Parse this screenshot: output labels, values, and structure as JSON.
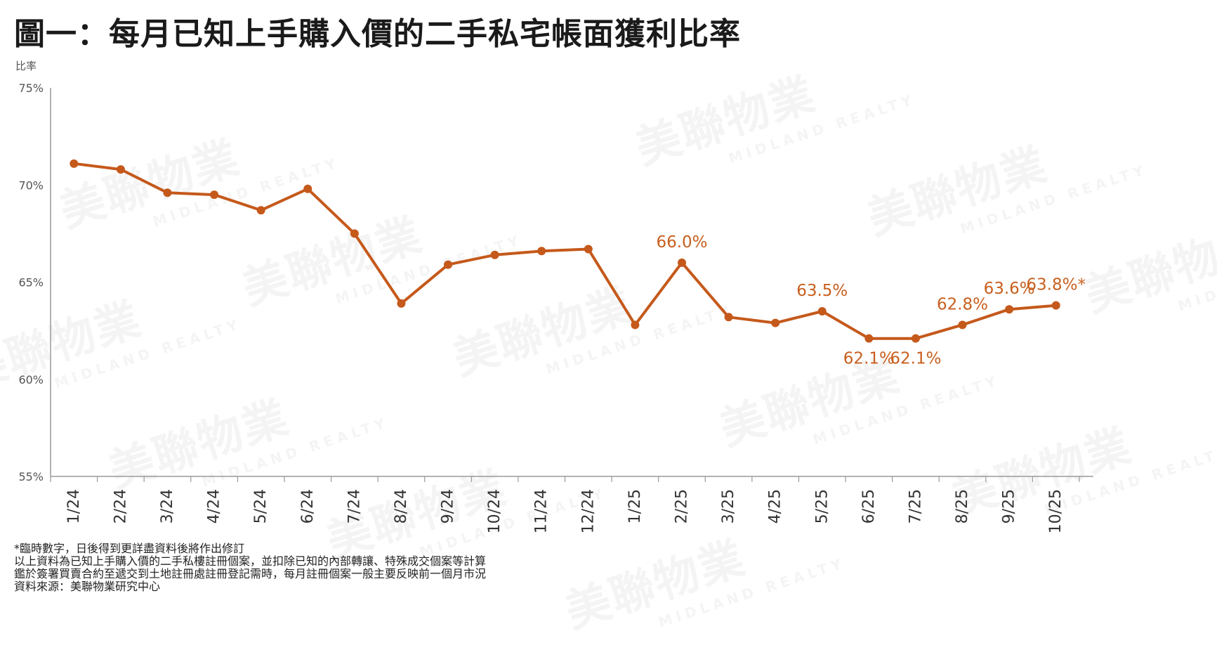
{
  "title": "圖一：每月已知上手購入價的二手私宅帳面獲利比率",
  "watermark": {
    "cn": "美聯物業",
    "en": "MIDLAND REALTY"
  },
  "colors": {
    "series": "#c5591b",
    "axis": "#9a9a9a",
    "title": "#1a1a1a"
  },
  "chart_data": {
    "type": "line",
    "ylabel": "比率",
    "ylim": [
      55,
      75
    ],
    "yticks": [
      55,
      60,
      65,
      70,
      75
    ],
    "ytick_labels": [
      "55%",
      "60%",
      "65%",
      "70%",
      "75%"
    ],
    "grid": false,
    "categories": [
      "1/24",
      "2/24",
      "3/24",
      "4/24",
      "5/24",
      "6/24",
      "7/24",
      "8/24",
      "9/24",
      "10/24",
      "11/24",
      "12/24",
      "1/25",
      "2/25",
      "3/25",
      "4/25",
      "5/25",
      "6/25",
      "7/25",
      "8/25",
      "9/25",
      "10/25"
    ],
    "series": [
      {
        "values": [
          71.1,
          70.8,
          69.6,
          69.5,
          68.7,
          69.8,
          67.5,
          63.9,
          65.9,
          66.4,
          66.6,
          66.7,
          62.8,
          66.0,
          63.2,
          62.9,
          63.5,
          62.1,
          62.1,
          62.8,
          63.6,
          63.8
        ],
        "labels": [
          {
            "index": 13,
            "text": "66.0%"
          },
          {
            "index": 16,
            "text": "63.5%"
          },
          {
            "index": 17,
            "text": "62.1%"
          },
          {
            "index": 18,
            "text": "62.1%"
          },
          {
            "index": 19,
            "text": "62.8%"
          },
          {
            "index": 20,
            "text": "63.6%"
          },
          {
            "index": 21,
            "text": "63.8%*"
          }
        ]
      }
    ]
  },
  "footnotes": [
    "*臨時數字，日後得到更詳盡資料後將作出修訂",
    "以上資料為已知上手購入價的二手私樓註冊個案，並扣除已知的內部轉讓、特殊成交個案等計算",
    "鑑於簽署買賣合約至遞交到土地註冊處註冊登記需時，每月註冊個案一般主要反映前一個月市況",
    "資料來源：美聯物業研究中心"
  ]
}
